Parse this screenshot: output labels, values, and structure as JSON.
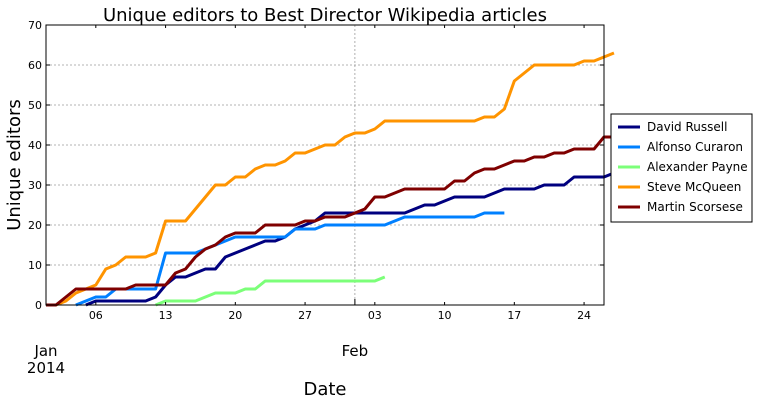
{
  "chart_data": {
    "type": "line",
    "title": "Unique editors to Best Director Wikipedia articles",
    "xlabel": "Date",
    "ylabel": "Unique editors",
    "xlim": [
      "2014-01-01",
      "2014-02-26"
    ],
    "ylim": [
      0,
      70
    ],
    "yticks": [
      0,
      10,
      20,
      30,
      40,
      50,
      60,
      70
    ],
    "xticks_minor": [
      {
        "date": "2014-01-06",
        "label": "06"
      },
      {
        "date": "2014-01-13",
        "label": "13"
      },
      {
        "date": "2014-01-20",
        "label": "20"
      },
      {
        "date": "2014-01-27",
        "label": "27"
      },
      {
        "date": "2014-02-03",
        "label": "03"
      },
      {
        "date": "2014-02-10",
        "label": "10"
      },
      {
        "date": "2014-02-17",
        "label": "17"
      },
      {
        "date": "2014-02-24",
        "label": "24"
      }
    ],
    "xticks_major": [
      {
        "date": "2014-01-01",
        "label": "Jan",
        "sublabel": "2014"
      },
      {
        "date": "2014-02-01",
        "label": "Feb",
        "sublabel": ""
      }
    ],
    "grid": true,
    "legend_position": "outside-right",
    "series": [
      {
        "name": "David Russell",
        "color": "#00007f",
        "points": [
          [
            "2014-01-05",
            0
          ],
          [
            "2014-01-06",
            1
          ],
          [
            "2014-01-11",
            1
          ],
          [
            "2014-01-12",
            2
          ],
          [
            "2014-01-13",
            5
          ],
          [
            "2014-01-14",
            7
          ],
          [
            "2014-01-15",
            7
          ],
          [
            "2014-01-16",
            8
          ],
          [
            "2014-01-17",
            9
          ],
          [
            "2014-01-18",
            9
          ],
          [
            "2014-01-19",
            12
          ],
          [
            "2014-01-20",
            13
          ],
          [
            "2014-01-21",
            14
          ],
          [
            "2014-01-22",
            15
          ],
          [
            "2014-01-23",
            16
          ],
          [
            "2014-01-24",
            16
          ],
          [
            "2014-01-25",
            17
          ],
          [
            "2014-01-26",
            19
          ],
          [
            "2014-01-27",
            20
          ],
          [
            "2014-01-28",
            21
          ],
          [
            "2014-01-29",
            23
          ],
          [
            "2014-01-30",
            23
          ],
          [
            "2014-02-06",
            23
          ],
          [
            "2014-02-07",
            24
          ],
          [
            "2014-02-08",
            25
          ],
          [
            "2014-02-09",
            25
          ],
          [
            "2014-02-10",
            26
          ],
          [
            "2014-02-11",
            27
          ],
          [
            "2014-02-14",
            27
          ],
          [
            "2014-02-15",
            28
          ],
          [
            "2014-02-16",
            29
          ],
          [
            "2014-02-19",
            29
          ],
          [
            "2014-02-20",
            30
          ],
          [
            "2014-02-22",
            30
          ],
          [
            "2014-02-23",
            32
          ],
          [
            "2014-02-26",
            32
          ],
          [
            "2014-02-27",
            33
          ]
        ]
      },
      {
        "name": "Alfonso Curaron",
        "color": "#0080ff",
        "points": [
          [
            "2014-01-04",
            0
          ],
          [
            "2014-01-05",
            1
          ],
          [
            "2014-01-06",
            2
          ],
          [
            "2014-01-07",
            2
          ],
          [
            "2014-01-08",
            4
          ],
          [
            "2014-01-12",
            4
          ],
          [
            "2014-01-13",
            13
          ],
          [
            "2014-01-16",
            13
          ],
          [
            "2014-01-17",
            14
          ],
          [
            "2014-01-18",
            15
          ],
          [
            "2014-01-19",
            16
          ],
          [
            "2014-01-20",
            17
          ],
          [
            "2014-01-25",
            17
          ],
          [
            "2014-01-26",
            19
          ],
          [
            "2014-01-28",
            19
          ],
          [
            "2014-01-29",
            20
          ],
          [
            "2014-02-04",
            20
          ],
          [
            "2014-02-06",
            22
          ],
          [
            "2014-02-13",
            22
          ],
          [
            "2014-02-14",
            23
          ],
          [
            "2014-02-16",
            23
          ]
        ]
      },
      {
        "name": "Alexander Payne",
        "color": "#7cff79",
        "points": [
          [
            "2014-01-12",
            0
          ],
          [
            "2014-01-13",
            1
          ],
          [
            "2014-01-16",
            1
          ],
          [
            "2014-01-17",
            2
          ],
          [
            "2014-01-18",
            3
          ],
          [
            "2014-01-20",
            3
          ],
          [
            "2014-01-21",
            4
          ],
          [
            "2014-01-22",
            4
          ],
          [
            "2014-01-23",
            6
          ],
          [
            "2014-02-02",
            6
          ],
          [
            "2014-02-03",
            6
          ],
          [
            "2014-02-04",
            7
          ]
        ]
      },
      {
        "name": "Steve McQueen",
        "color": "#ff9400",
        "points": [
          [
            "2014-01-02",
            0
          ],
          [
            "2014-01-03",
            1
          ],
          [
            "2014-01-04",
            3
          ],
          [
            "2014-01-05",
            4
          ],
          [
            "2014-01-06",
            5
          ],
          [
            "2014-01-07",
            9
          ],
          [
            "2014-01-08",
            10
          ],
          [
            "2014-01-09",
            12
          ],
          [
            "2014-01-11",
            12
          ],
          [
            "2014-01-12",
            13
          ],
          [
            "2014-01-13",
            21
          ],
          [
            "2014-01-15",
            21
          ],
          [
            "2014-01-16",
            24
          ],
          [
            "2014-01-17",
            27
          ],
          [
            "2014-01-18",
            30
          ],
          [
            "2014-01-19",
            30
          ],
          [
            "2014-01-20",
            32
          ],
          [
            "2014-01-21",
            32
          ],
          [
            "2014-01-22",
            34
          ],
          [
            "2014-01-23",
            35
          ],
          [
            "2014-01-24",
            35
          ],
          [
            "2014-01-25",
            36
          ],
          [
            "2014-01-26",
            38
          ],
          [
            "2014-01-27",
            38
          ],
          [
            "2014-01-28",
            39
          ],
          [
            "2014-01-29",
            40
          ],
          [
            "2014-01-30",
            40
          ],
          [
            "2014-01-31",
            42
          ],
          [
            "2014-02-01",
            43
          ],
          [
            "2014-02-02",
            43
          ],
          [
            "2014-02-03",
            44
          ],
          [
            "2014-02-04",
            46
          ],
          [
            "2014-02-13",
            46
          ],
          [
            "2014-02-14",
            47
          ],
          [
            "2014-02-15",
            47
          ],
          [
            "2014-02-16",
            49
          ],
          [
            "2014-02-17",
            56
          ],
          [
            "2014-02-18",
            58
          ],
          [
            "2014-02-19",
            60
          ],
          [
            "2014-02-23",
            60
          ],
          [
            "2014-02-24",
            61
          ],
          [
            "2014-02-25",
            61
          ],
          [
            "2014-02-27",
            63
          ]
        ]
      },
      {
        "name": "Martin Scorsese",
        "color": "#7f0000",
        "points": [
          [
            "2014-01-01",
            0
          ],
          [
            "2014-01-02",
            0
          ],
          [
            "2014-01-04",
            4
          ],
          [
            "2014-01-09",
            4
          ],
          [
            "2014-01-10",
            5
          ],
          [
            "2014-01-13",
            5
          ],
          [
            "2014-01-14",
            8
          ],
          [
            "2014-01-15",
            9
          ],
          [
            "2014-01-16",
            12
          ],
          [
            "2014-01-17",
            14
          ],
          [
            "2014-01-18",
            15
          ],
          [
            "2014-01-19",
            17
          ],
          [
            "2014-01-20",
            18
          ],
          [
            "2014-01-22",
            18
          ],
          [
            "2014-01-23",
            20
          ],
          [
            "2014-01-26",
            20
          ],
          [
            "2014-01-27",
            21
          ],
          [
            "2014-01-28",
            21
          ],
          [
            "2014-01-29",
            22
          ],
          [
            "2014-01-31",
            22
          ],
          [
            "2014-02-01",
            23
          ],
          [
            "2014-02-02",
            24
          ],
          [
            "2014-02-03",
            27
          ],
          [
            "2014-02-04",
            27
          ],
          [
            "2014-02-05",
            28
          ],
          [
            "2014-02-06",
            29
          ],
          [
            "2014-02-10",
            29
          ],
          [
            "2014-02-11",
            31
          ],
          [
            "2014-02-12",
            31
          ],
          [
            "2014-02-13",
            33
          ],
          [
            "2014-02-14",
            34
          ],
          [
            "2014-02-15",
            34
          ],
          [
            "2014-02-16",
            35
          ],
          [
            "2014-02-17",
            36
          ],
          [
            "2014-02-18",
            36
          ],
          [
            "2014-02-19",
            37
          ],
          [
            "2014-02-20",
            37
          ],
          [
            "2014-02-21",
            38
          ],
          [
            "2014-02-22",
            38
          ],
          [
            "2014-02-23",
            39
          ],
          [
            "2014-02-25",
            39
          ],
          [
            "2014-02-26",
            42
          ],
          [
            "2014-02-27",
            42
          ]
        ]
      }
    ]
  }
}
